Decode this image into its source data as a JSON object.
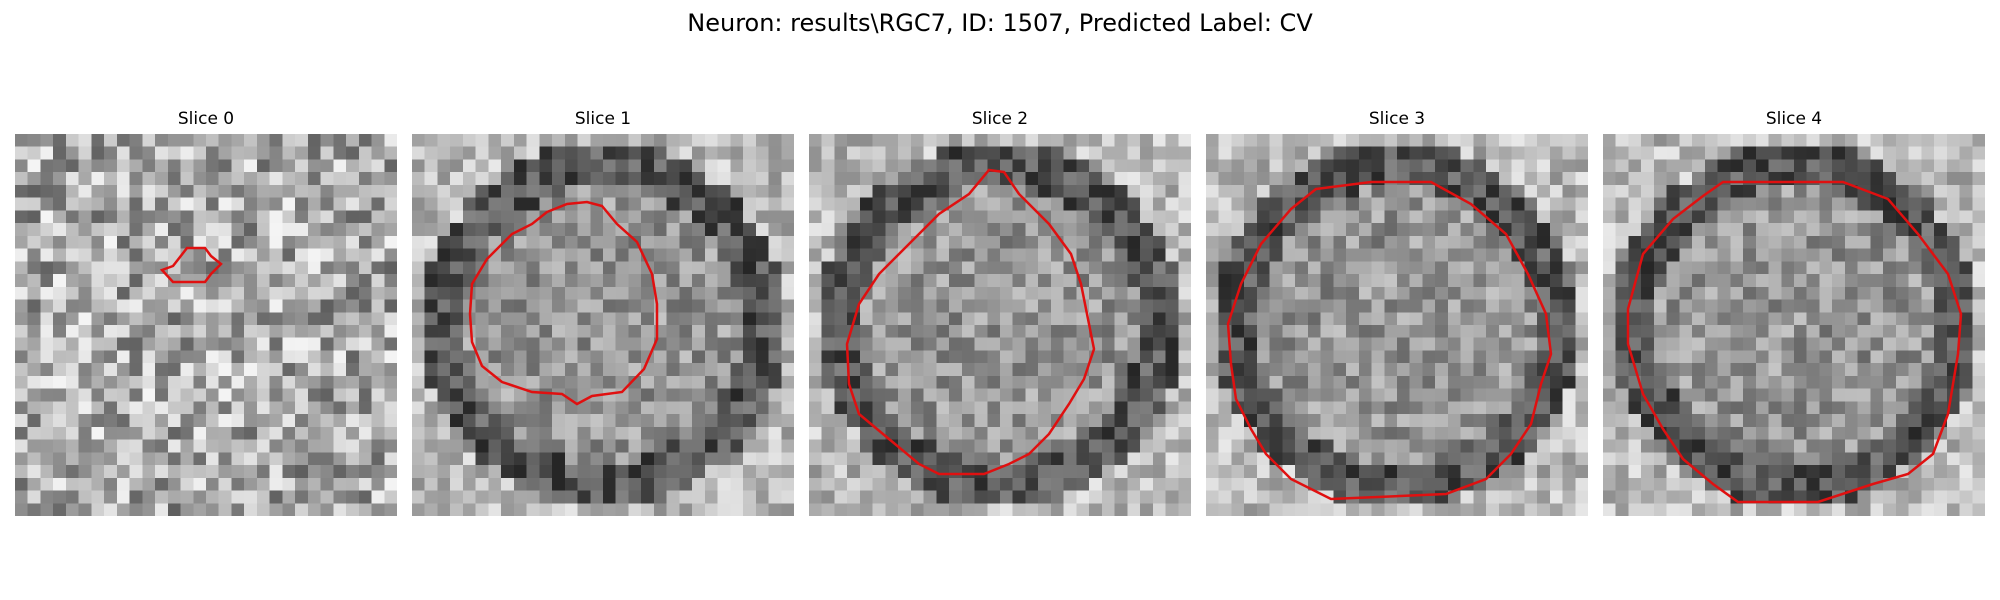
{
  "figure": {
    "title": "Neuron: results\\RGC7, ID: 1507, Predicted Label: CV",
    "contour_color": "#e01010",
    "colormap": "grayscale",
    "slices": [
      {
        "title": "Slice 0"
      },
      {
        "title": "Slice 1"
      },
      {
        "title": "Slice 2"
      },
      {
        "title": "Slice 3"
      },
      {
        "title": "Slice 4"
      }
    ]
  }
}
